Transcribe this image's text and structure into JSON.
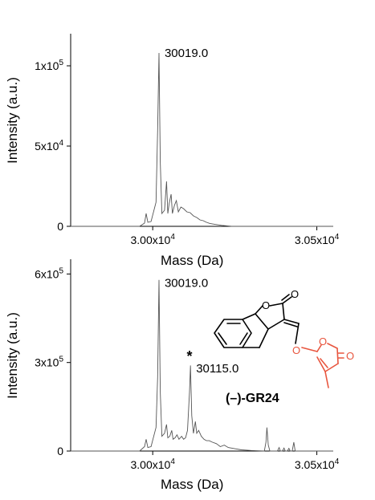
{
  "chart_data": [
    {
      "type": "line",
      "xlabel": "Mass (Da)",
      "ylabel": "Intensity (a.u.)",
      "xlim": [
        29750,
        30550
      ],
      "ylim": [
        0,
        120000
      ],
      "x_ticks": [
        {
          "value": 30000,
          "base": "3.00x10",
          "exp": "4"
        },
        {
          "value": 30500,
          "base": "3.05x10",
          "exp": "4"
        }
      ],
      "y_ticks": [
        {
          "value": 0,
          "base": "0",
          "exp": ""
        },
        {
          "value": 50000,
          "base": "5x10",
          "exp": "4"
        },
        {
          "value": 100000,
          "base": "1x10",
          "exp": "5"
        }
      ],
      "annotations": [
        {
          "text": "30019.0",
          "x": 30019,
          "y": 108000
        }
      ],
      "series": [
        {
          "points": [
            [
              29750,
              0
            ],
            [
              29960,
              0
            ],
            [
              29975,
              2000
            ],
            [
              29980,
              8000
            ],
            [
              29985,
              2500
            ],
            [
              29995,
              3000
            ],
            [
              30010,
              15000
            ],
            [
              30015,
              60000
            ],
            [
              30019,
              108000
            ],
            [
              30023,
              40000
            ],
            [
              30028,
              8000
            ],
            [
              30036,
              10000
            ],
            [
              30042,
              28000
            ],
            [
              30046,
              8000
            ],
            [
              30050,
              14000
            ],
            [
              30056,
              20000
            ],
            [
              30060,
              8000
            ],
            [
              30066,
              13000
            ],
            [
              30072,
              16000
            ],
            [
              30078,
              9000
            ],
            [
              30086,
              12000
            ],
            [
              30094,
              11000
            ],
            [
              30104,
              9000
            ],
            [
              30114,
              8500
            ],
            [
              30124,
              6500
            ],
            [
              30134,
              5500
            ],
            [
              30144,
              4000
            ],
            [
              30154,
              3500
            ],
            [
              30164,
              2500
            ],
            [
              30174,
              1800
            ],
            [
              30190,
              1200
            ],
            [
              30210,
              600
            ],
            [
              30240,
              0
            ],
            [
              30550,
              0
            ]
          ]
        }
      ]
    },
    {
      "type": "line",
      "xlabel": "Mass (Da)",
      "ylabel": "Intensity (a.u.)",
      "xlim": [
        29750,
        30550
      ],
      "ylim": [
        0,
        650000
      ],
      "x_ticks": [
        {
          "value": 30000,
          "base": "3.00x10",
          "exp": "4"
        },
        {
          "value": 30500,
          "base": "3.05x10",
          "exp": "4"
        }
      ],
      "y_ticks": [
        {
          "value": 0,
          "base": "0",
          "exp": ""
        },
        {
          "value": 300000,
          "base": "3x10",
          "exp": "5"
        },
        {
          "value": 600000,
          "base": "6x10",
          "exp": "5"
        }
      ],
      "annotations": [
        {
          "text": "30019.0",
          "x": 30019,
          "y": 570000
        },
        {
          "text": "30115.0",
          "x": 30115,
          "y": 280000
        },
        {
          "text": "*",
          "x": 30112,
          "y": 315000
        }
      ],
      "series": [
        {
          "points": [
            [
              29750,
              0
            ],
            [
              29960,
              0
            ],
            [
              29975,
              15000
            ],
            [
              29980,
              40000
            ],
            [
              29985,
              12000
            ],
            [
              29995,
              15000
            ],
            [
              30010,
              80000
            ],
            [
              30015,
              250000
            ],
            [
              30019,
              580000
            ],
            [
              30023,
              200000
            ],
            [
              30028,
              50000
            ],
            [
              30036,
              60000
            ],
            [
              30042,
              90000
            ],
            [
              30046,
              45000
            ],
            [
              30052,
              50000
            ],
            [
              30058,
              70000
            ],
            [
              30062,
              40000
            ],
            [
              30068,
              45000
            ],
            [
              30074,
              55000
            ],
            [
              30080,
              40000
            ],
            [
              30088,
              50000
            ],
            [
              30094,
              40000
            ],
            [
              30100,
              45000
            ],
            [
              30106,
              70000
            ],
            [
              30112,
              200000
            ],
            [
              30115,
              290000
            ],
            [
              30119,
              120000
            ],
            [
              30124,
              60000
            ],
            [
              30130,
              100000
            ],
            [
              30134,
              60000
            ],
            [
              30140,
              70000
            ],
            [
              30148,
              50000
            ],
            [
              30156,
              40000
            ],
            [
              30164,
              35000
            ],
            [
              30172,
              35000
            ],
            [
              30182,
              30000
            ],
            [
              30194,
              25000
            ],
            [
              30206,
              15000
            ],
            [
              30218,
              20000
            ],
            [
              30230,
              12000
            ],
            [
              30250,
              8000
            ],
            [
              30270,
              4000
            ],
            [
              30300,
              2000
            ],
            [
              30340,
              0
            ],
            [
              30345,
              30000
            ],
            [
              30348,
              80000
            ],
            [
              30352,
              20000
            ],
            [
              30357,
              0
            ],
            [
              30380,
              0
            ],
            [
              30385,
              12000
            ],
            [
              30389,
              0
            ],
            [
              30395,
              0
            ],
            [
              30400,
              10000
            ],
            [
              30404,
              0
            ],
            [
              30410,
              0
            ],
            [
              30415,
              9000
            ],
            [
              30419,
              0
            ],
            [
              30425,
              0
            ],
            [
              30430,
              30000
            ],
            [
              30434,
              0
            ],
            [
              30550,
              0
            ]
          ]
        }
      ]
    }
  ],
  "molecule": {
    "label": "(–)-GR24",
    "atom_O": "O",
    "colors": {
      "core": "#000000",
      "butenolide": "#e8563f"
    }
  }
}
